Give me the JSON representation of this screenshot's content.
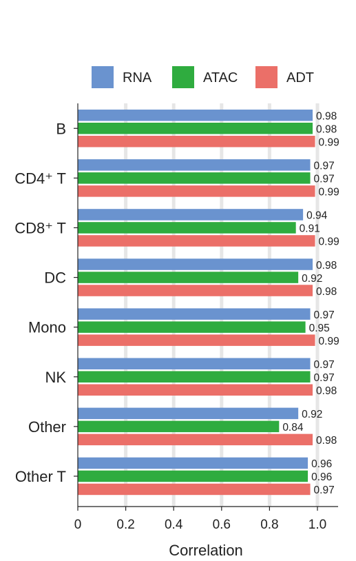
{
  "chart_data": {
    "type": "bar",
    "orientation": "horizontal",
    "categories": [
      "B",
      "CD4⁺ T",
      "CD8⁺ T",
      "DC",
      "Mono",
      "NK",
      "Other",
      "Other T"
    ],
    "series": [
      {
        "name": "RNA",
        "color": "#6a93cf",
        "values": [
          0.98,
          0.97,
          0.94,
          0.98,
          0.97,
          0.97,
          0.92,
          0.96
        ]
      },
      {
        "name": "ATAC",
        "color": "#2fac3f",
        "values": [
          0.98,
          0.97,
          0.91,
          0.92,
          0.95,
          0.97,
          0.84,
          0.96
        ]
      },
      {
        "name": "ADT",
        "color": "#eb6f68",
        "values": [
          0.99,
          0.99,
          0.99,
          0.98,
          0.99,
          0.98,
          0.98,
          0.97
        ]
      }
    ],
    "data_labels": {
      "RNA": [
        "0.98",
        "0.97",
        "0.94",
        "0.98",
        "0.97",
        "0.97",
        "0.92",
        "0.96"
      ],
      "ATAC": [
        "0.98",
        "0.97",
        "0.91",
        "0.92",
        "0.95",
        "0.97",
        "0.84",
        "0.96"
      ],
      "ADT": [
        "0.99",
        "0.99",
        "0.99",
        "0.98",
        "0.99",
        "0.98",
        "0.98",
        "0.97"
      ]
    },
    "xlabel": "Correlation",
    "ylabel": "",
    "title": "",
    "xlim": [
      0,
      1.0
    ],
    "xticks": [
      "0",
      "0.2",
      "0.4",
      "0.6",
      "0.8",
      "1.0"
    ],
    "grid": "vertical",
    "legend_position": "top"
  }
}
